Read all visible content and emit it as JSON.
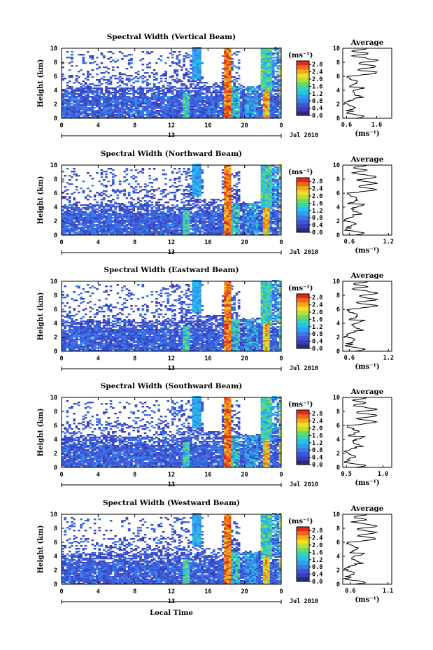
{
  "figure": {
    "xlabel": "Local Time",
    "bottom_label": "Local Time"
  },
  "chart_data": [
    {
      "type": "heatmap",
      "title": "Spectral Width (Vertical Beam)",
      "xlabel": "Local Time",
      "ylabel": "Height (km)",
      "x_ticks": [
        "0",
        "4",
        "8",
        "12",
        "16",
        "20",
        "0"
      ],
      "xlim": [
        0,
        24
      ],
      "y_ticks": [
        "0",
        "2",
        "4",
        "6",
        "8",
        "10"
      ],
      "ylim": [
        0,
        10
      ],
      "date_label": "13",
      "month_label": "Jul 2010",
      "colorbar": {
        "unit": "(ms⁻¹)",
        "ticks": [
          "0.0",
          "0.4",
          "0.8",
          "1.2",
          "1.6",
          "2.0",
          "2.4",
          "2.8"
        ],
        "range": [
          0,
          3.0
        ]
      },
      "average": {
        "title": "Average",
        "xlabel": "(ms⁻¹)",
        "x_ticks": [
          "0.6",
          "1.0"
        ],
        "xlim": [
          0.55,
          1.2
        ],
        "ylim": [
          0,
          10
        ]
      }
    },
    {
      "type": "heatmap",
      "title": "Spectral Width (Northward Beam)",
      "xlabel": "Local Time",
      "ylabel": "Height (km)",
      "x_ticks": [
        "0",
        "4",
        "8",
        "12",
        "16",
        "20",
        "0"
      ],
      "xlim": [
        0,
        24
      ],
      "y_ticks": [
        "0",
        "2",
        "4",
        "6",
        "8",
        "10"
      ],
      "ylim": [
        0,
        10
      ],
      "date_label": "13",
      "month_label": "Jul 2010",
      "colorbar": {
        "unit": "(ms⁻¹)",
        "ticks": [
          "0.0",
          "0.4",
          "0.8",
          "1.2",
          "1.6",
          "2.0",
          "2.4",
          "2.8"
        ],
        "range": [
          0,
          3.0
        ]
      },
      "average": {
        "title": "Average",
        "xlabel": "(ms⁻¹)",
        "x_ticks": [
          "0.6",
          "1.2"
        ],
        "xlim": [
          0.5,
          1.25
        ],
        "ylim": [
          0,
          10
        ]
      }
    },
    {
      "type": "heatmap",
      "title": "Spectral Width (Eastward Beam)",
      "xlabel": "Local Time",
      "ylabel": "Height (km)",
      "x_ticks": [
        "0",
        "4",
        "8",
        "12",
        "16",
        "20",
        "0"
      ],
      "xlim": [
        0,
        24
      ],
      "y_ticks": [
        "0",
        "2",
        "4",
        "6",
        "8",
        "10"
      ],
      "ylim": [
        0,
        10
      ],
      "date_label": "13",
      "month_label": "Jul 2010",
      "colorbar": {
        "unit": "(ms⁻¹)",
        "ticks": [
          "0.0",
          "0.4",
          "0.8",
          "1.2",
          "1.6",
          "2.0",
          "2.4",
          "2.8"
        ],
        "range": [
          0,
          3.0
        ]
      },
      "average": {
        "title": "Average",
        "xlabel": "(ms⁻¹)",
        "x_ticks": [
          "0.6",
          "1.2"
        ],
        "xlim": [
          0.5,
          1.25
        ],
        "ylim": [
          0,
          10
        ]
      }
    },
    {
      "type": "heatmap",
      "title": "Spectral Width (Southward Beam)",
      "xlabel": "Local Time",
      "ylabel": "Height (km)",
      "x_ticks": [
        "0",
        "4",
        "8",
        "12",
        "16",
        "20",
        "0"
      ],
      "xlim": [
        0,
        24
      ],
      "y_ticks": [
        "0",
        "2",
        "4",
        "6",
        "8",
        "10"
      ],
      "ylim": [
        0,
        10
      ],
      "date_label": "13",
      "month_label": "Jul 2010",
      "colorbar": {
        "unit": "(ms⁻¹)",
        "ticks": [
          "0.0",
          "0.4",
          "0.8",
          "1.2",
          "1.6",
          "2.0",
          "2.4",
          "2.8"
        ],
        "range": [
          0,
          3.0
        ]
      },
      "average": {
        "title": "Average",
        "xlabel": "(ms⁻¹)",
        "x_ticks": [
          "0.5",
          "1.0"
        ],
        "xlim": [
          0.45,
          1.12
        ],
        "ylim": [
          0,
          10
        ]
      }
    },
    {
      "type": "heatmap",
      "title": "Spectral Width (Westward Beam)",
      "xlabel": "Local Time",
      "ylabel": "Height (km)",
      "x_ticks": [
        "0",
        "4",
        "8",
        "12",
        "16",
        "20",
        "0"
      ],
      "xlim": [
        0,
        24
      ],
      "y_ticks": [
        "0",
        "2",
        "4",
        "6",
        "8",
        "10"
      ],
      "ylim": [
        0,
        10
      ],
      "date_label": "13",
      "month_label": "Jul 2010",
      "colorbar": {
        "unit": "(ms⁻¹)",
        "ticks": [
          "0.0",
          "0.4",
          "0.8",
          "1.2",
          "1.6",
          "2.0",
          "2.4",
          "2.8"
        ],
        "range": [
          0,
          3.0
        ]
      },
      "average": {
        "title": "Average",
        "xlabel": "(ms⁻¹)",
        "x_ticks": [
          "0.6",
          "1.1"
        ],
        "xlim": [
          0.5,
          1.15
        ],
        "ylim": [
          0,
          10
        ]
      }
    }
  ],
  "colormap": [
    "#2b2b80",
    "#3a3fb8",
    "#3f55d6",
    "#3d78e8",
    "#2fa0f0",
    "#28c2e6",
    "#35d6b0",
    "#6ad86a",
    "#b8e03a",
    "#f0e020",
    "#f5a81c",
    "#f06a1c",
    "#e0281c"
  ]
}
